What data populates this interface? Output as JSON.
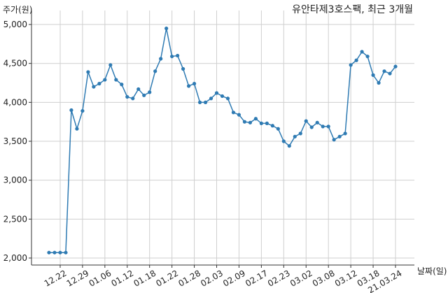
{
  "chart_data": {
    "type": "line",
    "title": "유안타제3호스팩, 최근 3개월",
    "y_label": "주가(원)",
    "x_label": "날짜(일)",
    "categories": [
      null,
      null,
      "12.22",
      null,
      null,
      null,
      "12.29",
      null,
      null,
      null,
      "01.06",
      null,
      null,
      null,
      "01.12",
      null,
      null,
      null,
      "01.18",
      null,
      null,
      null,
      "01.22",
      null,
      null,
      null,
      "01.28",
      null,
      null,
      null,
      "02.03",
      null,
      null,
      null,
      "02.09",
      null,
      null,
      null,
      "02.17",
      null,
      null,
      null,
      "02.23",
      null,
      null,
      null,
      "03.02",
      null,
      null,
      null,
      "03.08",
      null,
      null,
      null,
      "03.12",
      null,
      null,
      null,
      "03.18",
      null,
      null,
      null,
      "21.03.24"
    ],
    "series": [
      {
        "name": "주가",
        "color": "#2f7bb3",
        "values": [
          2070,
          2070,
          2070,
          2070,
          3900,
          3660,
          3890,
          4390,
          4200,
          4240,
          4290,
          4480,
          4290,
          4230,
          4070,
          4050,
          4170,
          4090,
          4130,
          4400,
          4560,
          4950,
          4590,
          4600,
          4430,
          4210,
          4240,
          4000,
          4000,
          4050,
          4120,
          4080,
          4050,
          3870,
          3840,
          3750,
          3740,
          3790,
          3730,
          3730,
          3700,
          3660,
          3500,
          3440,
          3560,
          3600,
          3760,
          3680,
          3740,
          3690,
          3690,
          3520,
          3560,
          3600,
          4480,
          4540,
          4650,
          4590,
          4350,
          4250,
          4400,
          4370,
          4460
        ]
      }
    ],
    "ylim": [
      1910,
      5180
    ],
    "yticks": [
      {
        "value": 2000,
        "label": "2,000"
      },
      {
        "value": 2500,
        "label": "2,500"
      },
      {
        "value": 3000,
        "label": "3,000"
      },
      {
        "value": 3500,
        "label": "3,500"
      },
      {
        "value": 4000,
        "label": "4,000"
      },
      {
        "value": 4500,
        "label": "4,500"
      },
      {
        "value": 5000,
        "label": "5,000"
      }
    ],
    "grid": true
  }
}
